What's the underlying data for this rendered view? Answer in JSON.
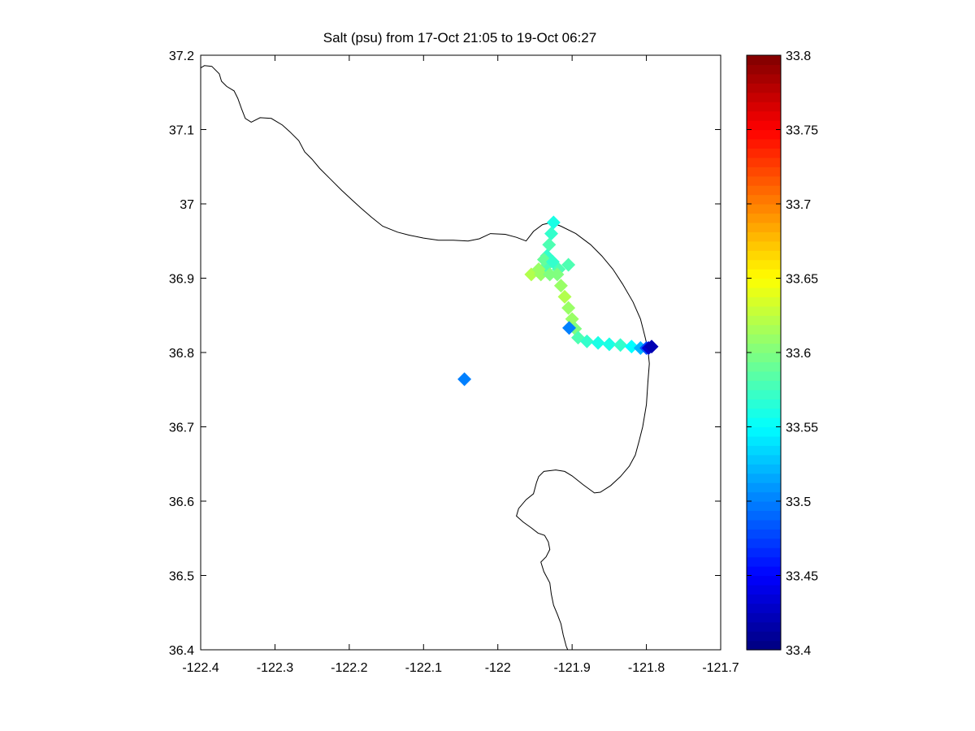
{
  "chart_data": {
    "type": "scatter",
    "title": "Salt (psu) from 17-Oct 21:05 to 19-Oct 06:27",
    "xlabel": "",
    "ylabel": "",
    "xlim": [
      -122.4,
      -121.7
    ],
    "ylim": [
      36.4,
      37.2
    ],
    "x_ticks": [
      -122.4,
      -122.3,
      -122.2,
      -122.1,
      -122.0,
      -121.9,
      -121.8,
      -121.7
    ],
    "x_tick_labels": [
      "-122.4",
      "-122.3",
      "-122.2",
      "-122.1",
      "-122",
      "-121.9",
      "-121.8",
      "-121.7"
    ],
    "y_ticks": [
      36.4,
      36.5,
      36.6,
      36.7,
      36.8,
      36.9,
      37.0,
      37.1,
      37.2
    ],
    "y_tick_labels": [
      "36.4",
      "36.5",
      "36.6",
      "36.7",
      "36.8",
      "36.9",
      "37",
      "37.1",
      "37.2"
    ],
    "grid": false,
    "colormap": "jet",
    "colorbar": {
      "clim": [
        33.4,
        33.8
      ],
      "ticks": [
        33.4,
        33.45,
        33.5,
        33.55,
        33.6,
        33.65,
        33.7,
        33.75,
        33.8
      ],
      "tick_labels": [
        "33.4",
        "33.45",
        "33.5",
        "33.55",
        "33.6",
        "33.65",
        "33.7",
        "33.75",
        "33.8"
      ],
      "placement": "right"
    },
    "coastline": [
      [
        -122.4,
        37.183
      ],
      [
        -122.395,
        37.186
      ],
      [
        -122.385,
        37.185
      ],
      [
        -122.375,
        37.175
      ],
      [
        -122.372,
        37.165
      ],
      [
        -122.365,
        37.158
      ],
      [
        -122.355,
        37.152
      ],
      [
        -122.35,
        37.142
      ],
      [
        -122.345,
        37.128
      ],
      [
        -122.34,
        37.115
      ],
      [
        -122.332,
        37.11
      ],
      [
        -122.32,
        37.116
      ],
      [
        -122.305,
        37.115
      ],
      [
        -122.29,
        37.106
      ],
      [
        -122.28,
        37.097
      ],
      [
        -122.268,
        37.085
      ],
      [
        -122.26,
        37.07
      ],
      [
        -122.25,
        37.06
      ],
      [
        -122.24,
        37.048
      ],
      [
        -122.225,
        37.033
      ],
      [
        -122.21,
        37.018
      ],
      [
        -122.196,
        37.005
      ],
      [
        -122.185,
        36.995
      ],
      [
        -122.17,
        36.982
      ],
      [
        -122.155,
        36.97
      ],
      [
        -122.135,
        36.962
      ],
      [
        -122.12,
        36.958
      ],
      [
        -122.1,
        36.954
      ],
      [
        -122.08,
        36.951
      ],
      [
        -122.06,
        36.951
      ],
      [
        -122.04,
        36.95
      ],
      [
        -122.025,
        36.953
      ],
      [
        -122.01,
        36.96
      ],
      [
        -121.99,
        36.959
      ],
      [
        -121.975,
        36.955
      ],
      [
        -121.962,
        36.95
      ],
      [
        -121.952,
        36.963
      ],
      [
        -121.94,
        36.972
      ],
      [
        -121.928,
        36.975
      ],
      [
        -121.915,
        36.97
      ],
      [
        -121.895,
        36.96
      ],
      [
        -121.875,
        36.945
      ],
      [
        -121.86,
        36.93
      ],
      [
        -121.845,
        36.912
      ],
      [
        -121.832,
        36.892
      ],
      [
        -121.818,
        36.868
      ],
      [
        -121.808,
        36.845
      ],
      [
        -121.802,
        36.822
      ],
      [
        -121.798,
        36.805
      ],
      [
        -121.796,
        36.785
      ],
      [
        -121.798,
        36.76
      ],
      [
        -121.8,
        36.73
      ],
      [
        -121.805,
        36.7
      ],
      [
        -121.81,
        36.68
      ],
      [
        -121.815,
        36.662
      ],
      [
        -121.823,
        36.647
      ],
      [
        -121.835,
        36.633
      ],
      [
        -121.848,
        36.621
      ],
      [
        -121.862,
        36.612
      ],
      [
        -121.87,
        36.611
      ],
      [
        -121.885,
        36.622
      ],
      [
        -121.9,
        36.634
      ],
      [
        -121.91,
        36.64
      ],
      [
        -121.922,
        36.642
      ],
      [
        -121.938,
        36.64
      ],
      [
        -121.945,
        36.633
      ],
      [
        -121.948,
        36.625
      ],
      [
        -121.952,
        36.61
      ],
      [
        -121.962,
        36.602
      ],
      [
        -121.972,
        36.59
      ],
      [
        -121.975,
        36.58
      ],
      [
        -121.966,
        36.572
      ],
      [
        -121.955,
        36.564
      ],
      [
        -121.946,
        36.557
      ],
      [
        -121.937,
        36.554
      ],
      [
        -121.932,
        36.545
      ],
      [
        -121.93,
        36.535
      ],
      [
        -121.935,
        36.525
      ],
      [
        -121.942,
        36.518
      ],
      [
        -121.938,
        36.505
      ],
      [
        -121.93,
        36.49
      ],
      [
        -121.928,
        36.475
      ],
      [
        -121.925,
        36.46
      ],
      [
        -121.92,
        36.448
      ],
      [
        -121.915,
        36.435
      ],
      [
        -121.912,
        36.42
      ],
      [
        -121.908,
        36.405
      ],
      [
        -121.906,
        36.4
      ]
    ],
    "series": [
      {
        "points": [
          {
            "x": -121.925,
            "y": 36.975,
            "salt": 33.56
          },
          {
            "x": -121.928,
            "y": 36.96,
            "salt": 33.57
          },
          {
            "x": -121.931,
            "y": 36.945,
            "salt": 33.58
          },
          {
            "x": -121.934,
            "y": 36.93,
            "salt": 33.57
          },
          {
            "x": -121.936,
            "y": 36.915,
            "salt": 33.58
          },
          {
            "x": -121.955,
            "y": 36.905,
            "salt": 33.62
          },
          {
            "x": -121.942,
            "y": 36.905,
            "salt": 33.61
          },
          {
            "x": -121.93,
            "y": 36.905,
            "salt": 33.6
          },
          {
            "x": -121.918,
            "y": 36.912,
            "salt": 33.58
          },
          {
            "x": -121.905,
            "y": 36.918,
            "salt": 33.58
          },
          {
            "x": -121.945,
            "y": 36.912,
            "salt": 33.61
          },
          {
            "x": -121.938,
            "y": 36.925,
            "salt": 33.59
          },
          {
            "x": -121.926,
            "y": 36.922,
            "salt": 33.57
          },
          {
            "x": -121.92,
            "y": 36.905,
            "salt": 33.6
          },
          {
            "x": -121.915,
            "y": 36.89,
            "salt": 33.61
          },
          {
            "x": -121.91,
            "y": 36.875,
            "salt": 33.62
          },
          {
            "x": -121.905,
            "y": 36.86,
            "salt": 33.61
          },
          {
            "x": -121.9,
            "y": 36.845,
            "salt": 33.61
          },
          {
            "x": -121.896,
            "y": 36.832,
            "salt": 33.6
          },
          {
            "x": -121.892,
            "y": 36.82,
            "salt": 33.58
          },
          {
            "x": -121.88,
            "y": 36.815,
            "salt": 33.57
          },
          {
            "x": -121.865,
            "y": 36.813,
            "salt": 33.56
          },
          {
            "x": -121.85,
            "y": 36.811,
            "salt": 33.56
          },
          {
            "x": -121.835,
            "y": 36.81,
            "salt": 33.57
          },
          {
            "x": -121.82,
            "y": 36.808,
            "salt": 33.55
          },
          {
            "x": -121.808,
            "y": 36.806,
            "salt": 33.52
          },
          {
            "x": -121.8,
            "y": 36.806,
            "salt": 33.48
          },
          {
            "x": -121.797,
            "y": 36.806,
            "salt": 33.43
          },
          {
            "x": -121.793,
            "y": 36.808,
            "salt": 33.42
          },
          {
            "x": -121.904,
            "y": 36.833,
            "salt": 33.5
          },
          {
            "x": -122.045,
            "y": 36.764,
            "salt": 33.5
          }
        ]
      }
    ]
  }
}
